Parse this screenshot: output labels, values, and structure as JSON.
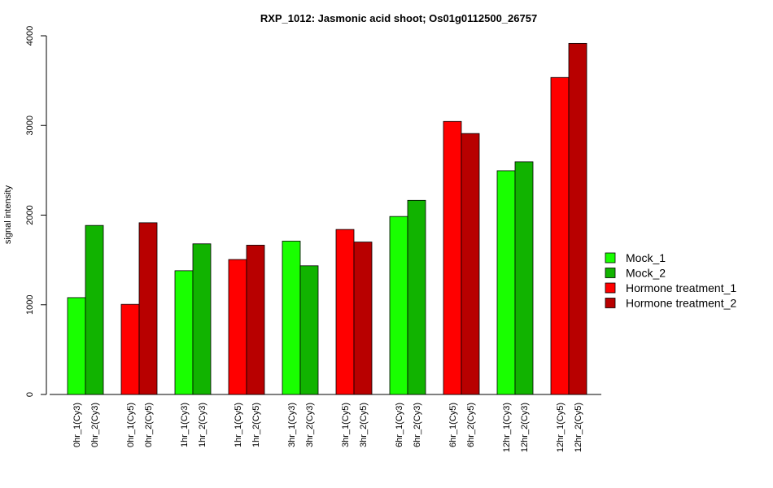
{
  "chart_data": {
    "type": "bar",
    "title": "RXP_1012: Jasmonic acid shoot; Os01g0112500_26757",
    "xlabel": "",
    "ylabel": "signal intensity",
    "ylim": [
      0,
      4000
    ],
    "yticks": [
      0,
      1000,
      2000,
      3000,
      4000
    ],
    "grid": false,
    "legend_position": "right",
    "legend": [
      {
        "name": "Mock_1",
        "color": "#19FF00"
      },
      {
        "name": "Mock_2",
        "color": "#11B300"
      },
      {
        "name": "Hormone treatment_1",
        "color": "#FF0000"
      },
      {
        "name": "Hormone treatment_2",
        "color": "#B80000"
      }
    ],
    "bars": [
      {
        "label": "0hr_1(Cy3)",
        "value": 1080,
        "color": "#19FF00"
      },
      {
        "label": "0hr_2(Cy3)",
        "value": 1885,
        "color": "#11B300"
      },
      {
        "label": "0hr_1(Cy5)",
        "value": 1005,
        "color": "#FF0000"
      },
      {
        "label": "0hr_2(Cy5)",
        "value": 1915,
        "color": "#B80000"
      },
      {
        "label": "1hr_1(Cy3)",
        "value": 1380,
        "color": "#19FF00"
      },
      {
        "label": "1hr_2(Cy3)",
        "value": 1680,
        "color": "#11B300"
      },
      {
        "label": "1hr_1(Cy5)",
        "value": 1505,
        "color": "#FF0000"
      },
      {
        "label": "1hr_2(Cy5)",
        "value": 1665,
        "color": "#B80000"
      },
      {
        "label": "3hr_1(Cy3)",
        "value": 1710,
        "color": "#19FF00"
      },
      {
        "label": "3hr_2(Cy3)",
        "value": 1435,
        "color": "#11B300"
      },
      {
        "label": "3hr_1(Cy5)",
        "value": 1840,
        "color": "#FF0000"
      },
      {
        "label": "3hr_2(Cy5)",
        "value": 1700,
        "color": "#B80000"
      },
      {
        "label": "6hr_1(Cy3)",
        "value": 1985,
        "color": "#19FF00"
      },
      {
        "label": "6hr_2(Cy3)",
        "value": 2165,
        "color": "#11B300"
      },
      {
        "label": "6hr_1(Cy5)",
        "value": 3045,
        "color": "#FF0000"
      },
      {
        "label": "6hr_2(Cy5)",
        "value": 2910,
        "color": "#B80000"
      },
      {
        "label": "12hr_1(Cy3)",
        "value": 2495,
        "color": "#19FF00"
      },
      {
        "label": "12hr_2(Cy3)",
        "value": 2595,
        "color": "#11B300"
      },
      {
        "label": "12hr_1(Cy5)",
        "value": 3535,
        "color": "#FF0000"
      },
      {
        "label": "12hr_2(Cy5)",
        "value": 3915,
        "color": "#B80000"
      }
    ]
  }
}
